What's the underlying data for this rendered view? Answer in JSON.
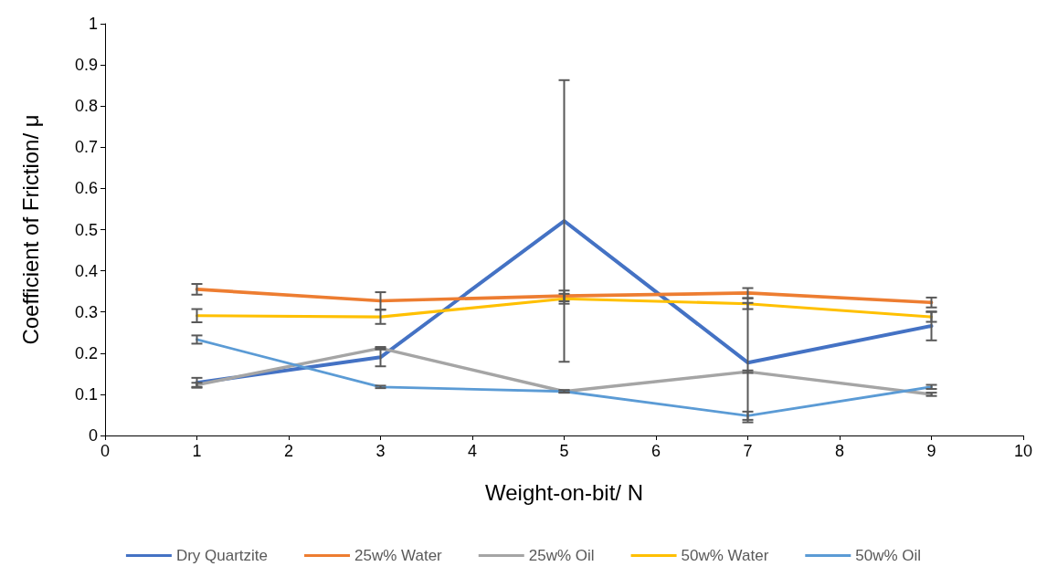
{
  "chart_data": {
    "type": "line",
    "xlabel": "Weight-on-bit/ N",
    "ylabel": "Coefficient of Friction/ μ",
    "x": [
      1,
      3,
      5,
      7,
      9
    ],
    "xlim": [
      0,
      10
    ],
    "xticks": [
      0,
      1,
      2,
      3,
      4,
      5,
      6,
      7,
      8,
      9,
      10
    ],
    "ylim": [
      0,
      1
    ],
    "yticks": [
      0,
      0.1,
      0.2,
      0.3,
      0.4,
      0.5,
      0.6,
      0.7,
      0.8,
      0.9,
      1
    ],
    "grid": false,
    "legend": "bottom",
    "marker": "none",
    "line_style": "solid",
    "series": [
      {
        "name": "Dry Quartzite",
        "color": "#4472c4",
        "values": [
          0.128,
          0.19,
          0.521,
          0.177,
          0.266
        ],
        "errors": [
          0.012,
          0.022,
          0.342,
          0.145,
          0.035
        ]
      },
      {
        "name": "25w% Water",
        "color": "#ed7d31",
        "values": [
          0.355,
          0.327,
          0.339,
          0.346,
          0.323
        ],
        "errors": [
          0.013,
          0.021,
          0.013,
          0.012,
          0.012
        ]
      },
      {
        "name": "25w% Oil",
        "color": "#a5a5a5",
        "values": [
          0.123,
          0.212,
          0.107,
          0.155,
          0.1
        ],
        "errors": [
          0.005,
          0.003,
          0.003,
          0.003,
          0.004
        ]
      },
      {
        "name": "50w% Water",
        "color": "#ffc000",
        "values": [
          0.291,
          0.288,
          0.332,
          0.32,
          0.288
        ],
        "errors": [
          0.016,
          0.017,
          0.012,
          0.013,
          0.012
        ]
      },
      {
        "name": "50w% Oil",
        "color": "#5b9bd5",
        "values": [
          0.233,
          0.118,
          0.107,
          0.048,
          0.118
        ],
        "errors": [
          0.01,
          0.003,
          0.003,
          0.01,
          0.005
        ]
      }
    ]
  }
}
